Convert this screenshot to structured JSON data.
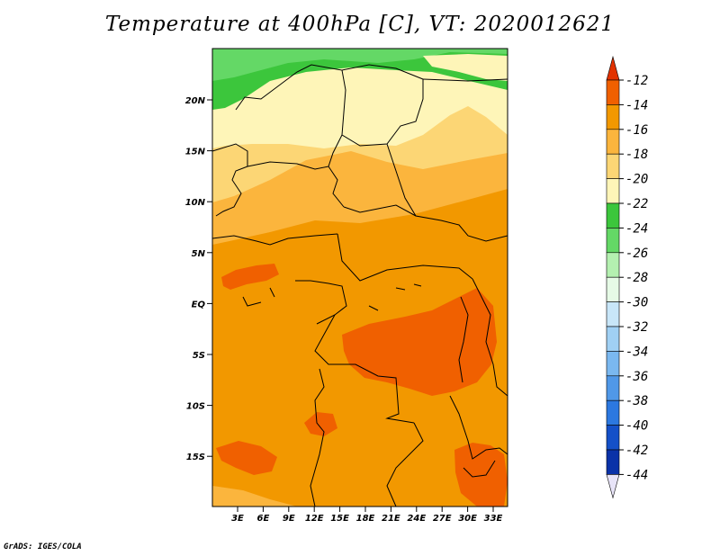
{
  "title": "Temperature at 400hPa [C], VT: 2020012621",
  "credit": "GrADS: IGES/COLA",
  "map": {
    "lat_ticks": [
      "20N",
      "15N",
      "10N",
      "5N",
      "EQ",
      "5S",
      "10S",
      "15S"
    ],
    "lon_ticks": [
      "3E",
      "6E",
      "9E",
      "12E",
      "15E",
      "18E",
      "21E",
      "24E",
      "27E",
      "30E",
      "33E"
    ],
    "colors": {
      "c_m12": "#f06000",
      "c_m14": "#f29800",
      "c_m16": "#fbb53d",
      "c_m18": "#fcd675",
      "c_m20": "#fef5b8",
      "c_m22": "#3cc63c",
      "c_m24": "#64d866",
      "border": "#000000"
    }
  },
  "colorbar": {
    "labels": [
      "-12",
      "-14",
      "-16",
      "-18",
      "-20",
      "-22",
      "-24",
      "-26",
      "-28",
      "-30",
      "-32",
      "-34",
      "-36",
      "-38",
      "-40",
      "-42",
      "-44"
    ],
    "colors": [
      "#e23200",
      "#f06000",
      "#f29800",
      "#fbb53d",
      "#fcd675",
      "#fef5b8",
      "#3cc63c",
      "#64d866",
      "#b4f0b0",
      "#e6fae6",
      "#c8e6f8",
      "#a0d0f4",
      "#7ab8f0",
      "#5098e8",
      "#2c78e0",
      "#1450c8",
      "#0a32a8",
      "#0a1478",
      "#e8e4f8"
    ]
  }
}
